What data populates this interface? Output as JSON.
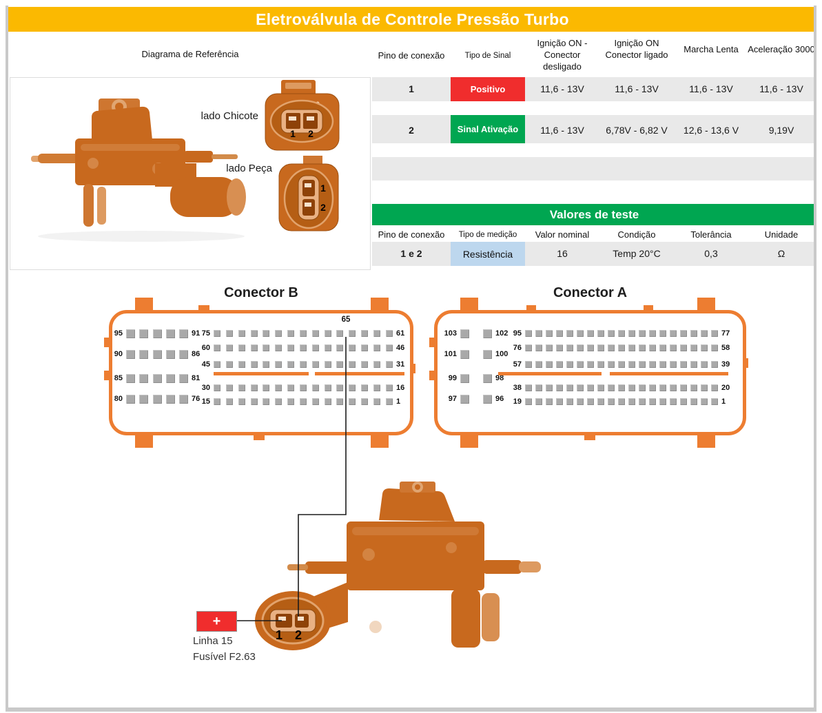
{
  "title": "Eletroválvula de Controle Pressão Turbo",
  "signal_table": {
    "ref_header": "Diagrama de Referência",
    "col_pin": "Pino de conexão",
    "col_signal": "Tipo de Sinal",
    "col_ign_off": "Ignição ON - Conector desligado",
    "col_ign_on": "Ignição ON Conector ligado",
    "col_idle": "Marcha Lenta",
    "col_accel": "Aceleração 3000",
    "rows": [
      {
        "pin": "1",
        "signal": "Positivo",
        "values": [
          "11,6 - 13V",
          "11,6 - 13V",
          "11,6 - 13V",
          "11,6 - 13V"
        ]
      },
      {
        "pin": "2",
        "signal": "Sinal Ativação",
        "values": [
          "11,6 - 13V",
          "6,78V - 6,82 V",
          "12,6 - 13,6 V",
          "9,19V"
        ]
      }
    ]
  },
  "test_table": {
    "title": "Valores de teste",
    "col_pin": "Pino de conexão",
    "col_meas": "Tipo de medição",
    "col_nominal": "Valor nominal",
    "col_cond": "Condição",
    "col_tol": "Tolerância",
    "col_unit": "Unidade",
    "row": {
      "pin": "1 e 2",
      "measurement": "Resistência",
      "nominal": "16",
      "condition": "Temp 20°C",
      "tolerance": "0,3",
      "unit": "Ω"
    }
  },
  "reference": {
    "chicote_label": "lado Chicote",
    "peca_label": "lado Peça",
    "chicote_pins": [
      "1",
      "2"
    ],
    "peca_pins": [
      "1",
      "2"
    ]
  },
  "connector_b": {
    "title": "Conector B",
    "callout_pin": "65",
    "left_rows": [
      [
        "95",
        "91"
      ],
      [
        "90",
        "86"
      ],
      [
        "85",
        "81"
      ],
      [
        "80",
        "76"
      ]
    ],
    "right_rows": [
      [
        "75",
        "61"
      ],
      [
        "60",
        "46"
      ],
      [
        "45",
        "31"
      ],
      [
        "30",
        "16"
      ],
      [
        "15",
        "1"
      ]
    ]
  },
  "connector_a": {
    "title": "Conector A",
    "left_rows": [
      [
        "103",
        "102"
      ],
      [
        "101",
        "100"
      ],
      [
        "99",
        "98"
      ],
      [
        "97",
        "96"
      ]
    ],
    "right_rows": [
      [
        "95",
        "77"
      ],
      [
        "76",
        "58"
      ],
      [
        "57",
        "39"
      ],
      [
        "38",
        "20"
      ],
      [
        "19",
        "1"
      ]
    ]
  },
  "wiring": {
    "plus_label": "+",
    "line_label": "Linha 15",
    "fuse_label": "Fusível F2.63",
    "pin_labels": [
      "1",
      "2"
    ]
  },
  "colors": {
    "header_yellow": "#FBB901",
    "connector_orange": "#ED7D31",
    "positive_red": "#F02D2D",
    "activation_green": "#00A651",
    "resistance_blue": "#BDD7EE",
    "row_gray": "#E9E9E9",
    "pin_gray": "#A9A9A9",
    "photo_orange": "#C8691E"
  }
}
